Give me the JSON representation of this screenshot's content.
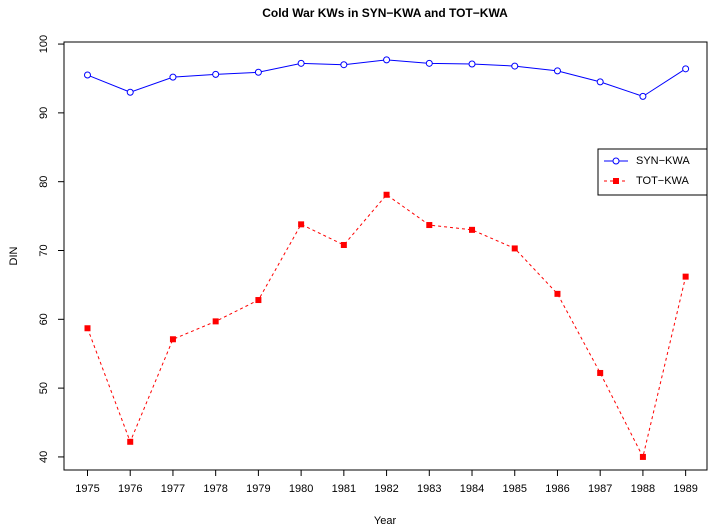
{
  "chart_data": {
    "type": "line",
    "title": "Cold War KWs in SYN−KWA and TOT−KWA",
    "xlabel": "Year",
    "ylabel": "DIN",
    "x": [
      1975,
      1976,
      1977,
      1978,
      1979,
      1980,
      1981,
      1982,
      1983,
      1984,
      1985,
      1986,
      1987,
      1988,
      1989
    ],
    "series": [
      {
        "name": "SYN−KWA",
        "color": "#0000ff",
        "marker": "circle",
        "dash": "solid",
        "values": [
          95.5,
          93.0,
          95.2,
          95.6,
          95.9,
          97.2,
          97.0,
          97.7,
          97.2,
          97.1,
          96.8,
          96.1,
          94.5,
          92.4,
          96.4
        ]
      },
      {
        "name": "TOT−KWA",
        "color": "#ff0000",
        "marker": "square",
        "dash": "dashed",
        "values": [
          58.7,
          42.2,
          57.1,
          59.7,
          62.8,
          73.8,
          70.8,
          78.1,
          73.7,
          73.0,
          70.3,
          63.7,
          52.2,
          40.0,
          66.2
        ]
      }
    ],
    "xlim": [
      1974.45,
      1989.5
    ],
    "xticks": [
      1975,
      1976,
      1977,
      1978,
      1979,
      1980,
      1981,
      1982,
      1983,
      1984,
      1985,
      1986,
      1987,
      1988,
      1989
    ],
    "ylim": [
      38.1,
      100.3
    ],
    "yticks": [
      40,
      50,
      60,
      70,
      80,
      90,
      100
    ],
    "grid": false,
    "legend": "right"
  }
}
